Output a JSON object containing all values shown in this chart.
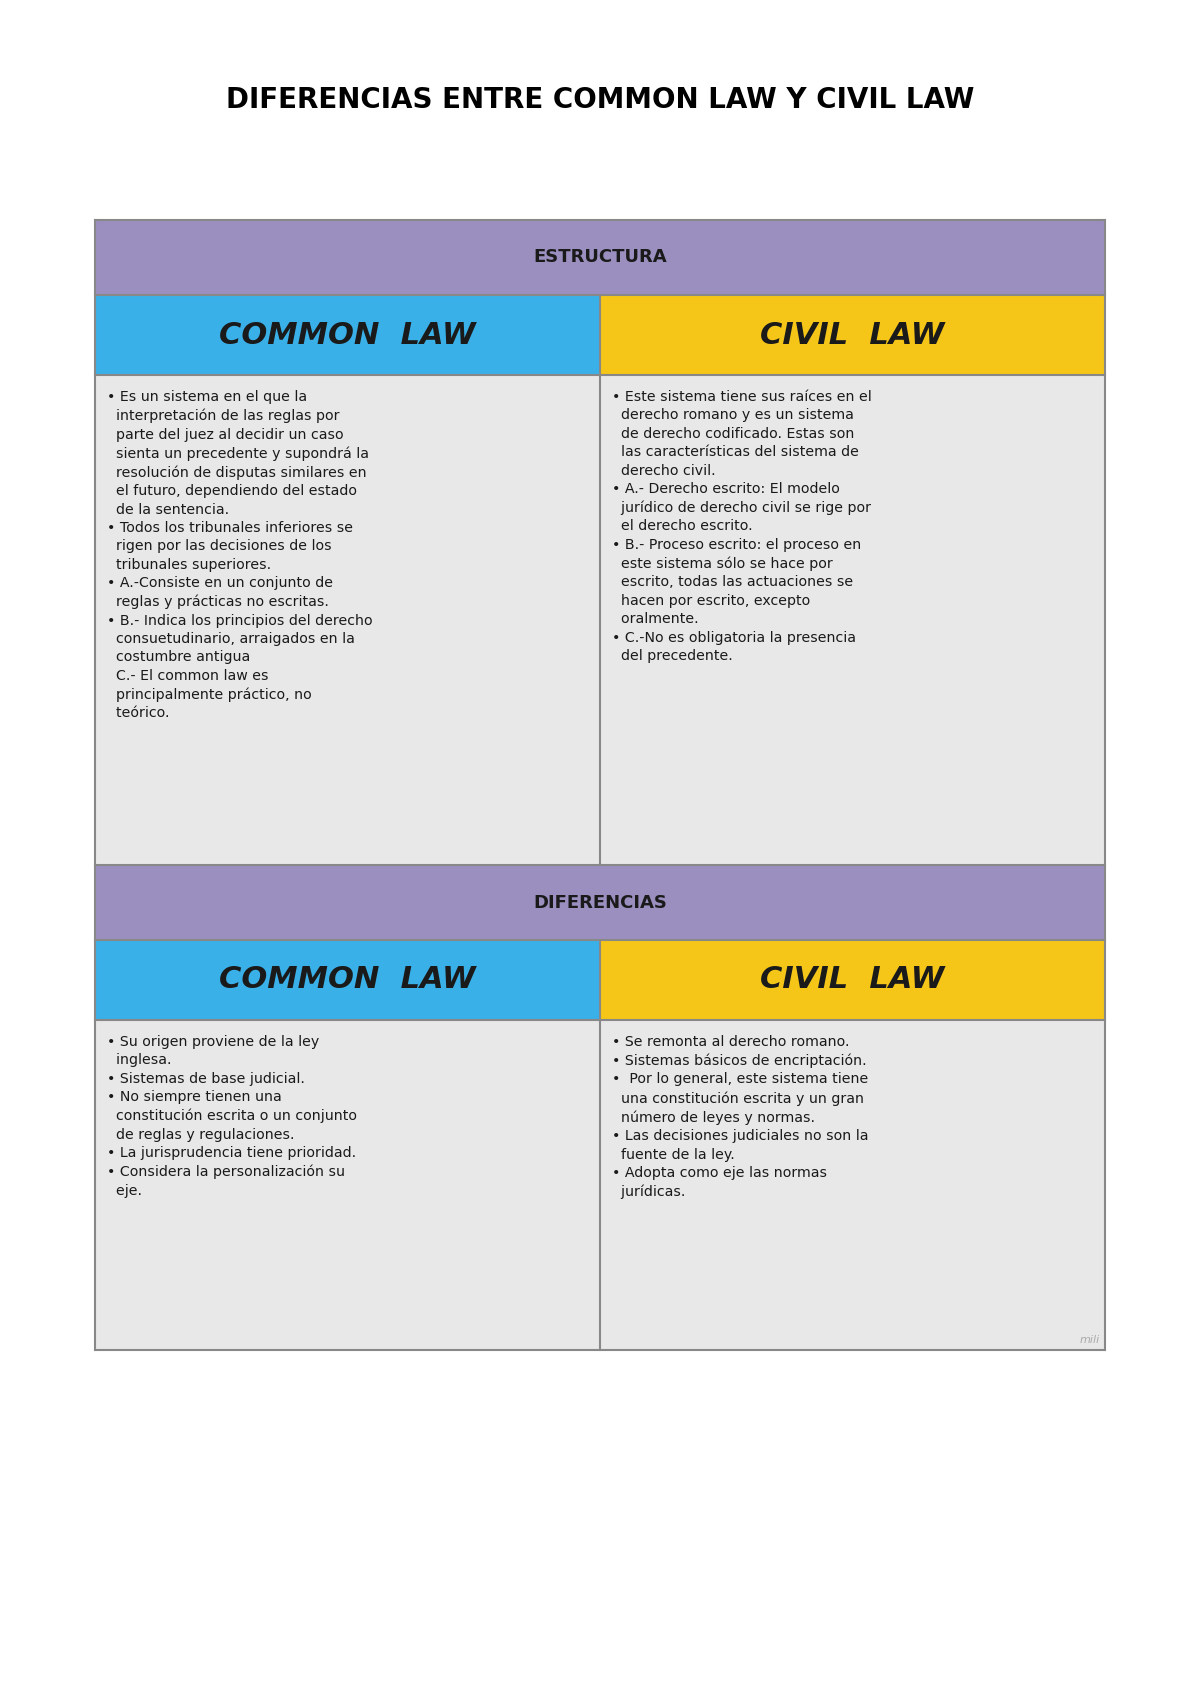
{
  "title": "DIFERENCIAS ENTRE COMMON LAW Y CIVIL LAW",
  "title_fontsize": 20,
  "background_color": "#ffffff",
  "table_border_color": "#888888",
  "purple_color": "#9b8fc0",
  "blue_color": "#3ab0e8",
  "yellow_color": "#f5c518",
  "light_gray": "#e8e8e8",
  "section1_header": "ESTRUCTURA",
  "section2_header": "DIFERENCIAS",
  "col1_header": "COMMON  LAW",
  "col2_header": "CIVIL  LAW",
  "estructura_common_text": "• Es un sistema en el que la\n  interpretación de las reglas por\n  parte del juez al decidir un caso\n  sienta un precedente y supondrá la\n  resolución de disputas similares en\n  el futuro, dependiendo del estado\n  de la sentencia.\n• Todos los tribunales inferiores se\n  rigen por las decisiones de los\n  tribunales superiores.\n• A.-Consiste en un conjunto de\n  reglas y prácticas no escritas.\n• B.- Indica los principios del derecho\n  consuetudinario, arraigados en la\n  costumbre antigua\n  C.- El common law es\n  principalmente práctico, no\n  teórico.",
  "estructura_civil_text": "• Este sistema tiene sus raíces en el\n  derecho romano y es un sistema\n  de derecho codificado. Estas son\n  las características del sistema de\n  derecho civil.\n• A.- Derecho escrito: El modelo\n  jurídico de derecho civil se rige por\n  el derecho escrito.\n• B.- Proceso escrito: el proceso en\n  este sistema sólo se hace por\n  escrito, todas las actuaciones se\n  hacen por escrito, excepto\n  oralmente.\n• C.-No es obligatoria la presencia\n  del precedente.",
  "diferencias_common_text": "• Su origen proviene de la ley\n  inglesa.\n• Sistemas de base judicial.\n• No siempre tienen una\n  constitución escrita o un conjunto\n  de reglas y regulaciones.\n• La jurisprudencia tiene prioridad.\n• Considera la personalización su\n  eje.",
  "diferencias_civil_text": "• Se remonta al derecho romano.\n• Sistemas básicos de encriptación.\n•  Por lo general, este sistema tiene\n  una constitución escrita y un gran\n  número de leyes y normas.\n• Las decisiones judiciales no son la\n  fuente de la ley.\n• Adopta como eje las normas\n  jurídicas.",
  "watermark": "mili"
}
